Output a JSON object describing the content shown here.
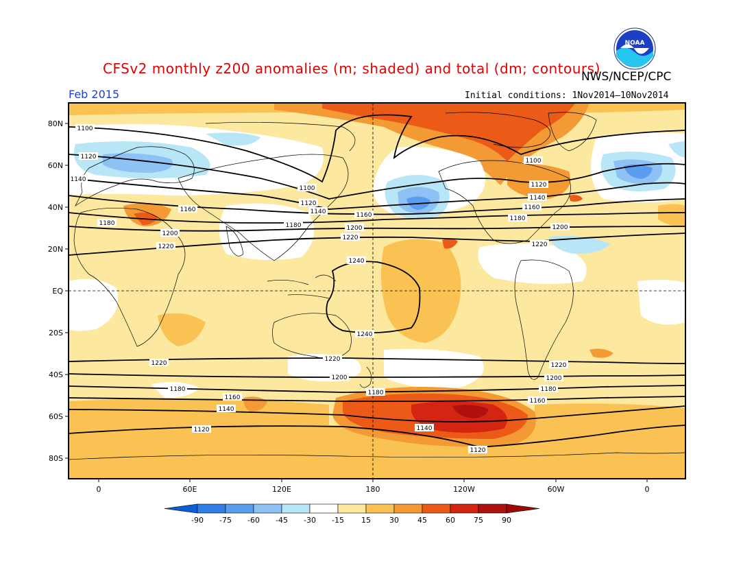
{
  "title": "CFSv2 monthly z200 anomalies (m; shaded) and total (dm; contours)",
  "agency": "NWS/NCEP/CPC",
  "logo_text": "NOAA",
  "month": "Feb 2015",
  "initial_conditions": "Initial conditions: 1Nov2014–10Nov2014",
  "lat_labels": [
    "80N",
    "60N",
    "40N",
    "20N",
    "EQ",
    "20S",
    "40S",
    "60S",
    "80S"
  ],
  "lon_labels": [
    "0",
    "60E",
    "120E",
    "180",
    "120W",
    "60W",
    "0"
  ],
  "colorbar": {
    "labels": [
      "-90",
      "-75",
      "-60",
      "-45",
      "-30",
      "-15",
      "15",
      "30",
      "45",
      "60",
      "75",
      "90"
    ],
    "colors": [
      "#0a5fd6",
      "#2f7fe6",
      "#5a9cee",
      "#8ec2f4",
      "#b8e6f6",
      "#ffffff",
      "#fde8a0",
      "#f9c253",
      "#f39a34",
      "#ec5a18",
      "#d42412",
      "#b01010",
      "#9a0808"
    ]
  },
  "contour_labels": [
    "1100",
    "1120",
    "1140",
    "1160",
    "1180",
    "1200",
    "1220",
    "1240"
  ]
}
